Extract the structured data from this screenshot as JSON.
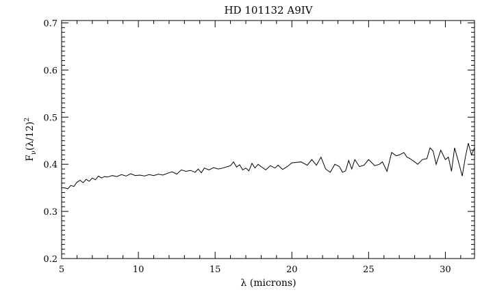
{
  "chart_data": {
    "type": "line",
    "title": "HD 101132 A9IV",
    "xlabel": "λ (microns)",
    "ylabel_main": "F",
    "ylabel_sub": "ν",
    "ylabel_rest": "(λ/12)",
    "ylabel_sup": "2",
    "xlim": [
      5,
      31.9
    ],
    "ylim": [
      0.2,
      0.705
    ],
    "xticks": [
      5,
      10,
      15,
      20,
      25,
      30
    ],
    "xtick_labels": [
      "5",
      "10",
      "15",
      "20",
      "25",
      "30"
    ],
    "yticks": [
      0.2,
      0.3,
      0.4,
      0.5,
      0.6,
      0.7
    ],
    "ytick_labels": [
      "0.2",
      "0.3",
      "0.4",
      "0.5",
      "0.6",
      "0.7"
    ],
    "grid": false,
    "line_color": "#000000",
    "series": [
      {
        "x": [
          5.2,
          5.4,
          5.6,
          5.8,
          6.0,
          6.2,
          6.4,
          6.6,
          6.8,
          7.0,
          7.2,
          7.4,
          7.6,
          7.8,
          8.0,
          8.3,
          8.6,
          8.9,
          9.2,
          9.5,
          9.8,
          10.1,
          10.4,
          10.7,
          11.0,
          11.3,
          11.6,
          11.9,
          12.2,
          12.5,
          12.8,
          13.1,
          13.4,
          13.7,
          13.9,
          14.1,
          14.3,
          14.6,
          14.9,
          15.2,
          15.5,
          15.8,
          16.0,
          16.2,
          16.4,
          16.6,
          16.8,
          17.0,
          17.2,
          17.4,
          17.6,
          17.8,
          18.0,
          18.3,
          18.6,
          18.9,
          19.1,
          19.4,
          19.7,
          20.0,
          20.3,
          20.6,
          21.0,
          21.3,
          21.6,
          21.9,
          22.2,
          22.5,
          22.8,
          23.1,
          23.3,
          23.5,
          23.7,
          23.9,
          24.1,
          24.4,
          24.7,
          25.0,
          25.4,
          25.7,
          25.9,
          26.2,
          26.5,
          26.8,
          27.0,
          27.3,
          27.5,
          27.7,
          28.0,
          28.2,
          28.5,
          28.8,
          29.0,
          29.2,
          29.4,
          29.7,
          30.0,
          30.2,
          30.4,
          30.6,
          30.9,
          31.1,
          31.3,
          31.5,
          31.7,
          31.9
        ],
        "y": [
          0.35,
          0.348,
          0.355,
          0.353,
          0.362,
          0.366,
          0.361,
          0.368,
          0.364,
          0.371,
          0.367,
          0.375,
          0.371,
          0.374,
          0.373,
          0.376,
          0.374,
          0.378,
          0.375,
          0.38,
          0.376,
          0.377,
          0.375,
          0.378,
          0.376,
          0.379,
          0.377,
          0.381,
          0.384,
          0.379,
          0.388,
          0.385,
          0.387,
          0.383,
          0.39,
          0.382,
          0.392,
          0.388,
          0.393,
          0.39,
          0.392,
          0.395,
          0.397,
          0.405,
          0.394,
          0.399,
          0.388,
          0.392,
          0.386,
          0.402,
          0.392,
          0.4,
          0.395,
          0.388,
          0.397,
          0.392,
          0.398,
          0.389,
          0.395,
          0.403,
          0.404,
          0.405,
          0.398,
          0.41,
          0.398,
          0.415,
          0.39,
          0.383,
          0.4,
          0.395,
          0.383,
          0.386,
          0.408,
          0.39,
          0.41,
          0.395,
          0.398,
          0.41,
          0.397,
          0.4,
          0.405,
          0.385,
          0.425,
          0.418,
          0.42,
          0.425,
          0.415,
          0.412,
          0.405,
          0.4,
          0.41,
          0.412,
          0.435,
          0.428,
          0.4,
          0.43,
          0.41,
          0.415,
          0.385,
          0.435,
          0.4,
          0.375,
          0.415,
          0.445,
          0.42,
          0.435
        ]
      }
    ]
  }
}
